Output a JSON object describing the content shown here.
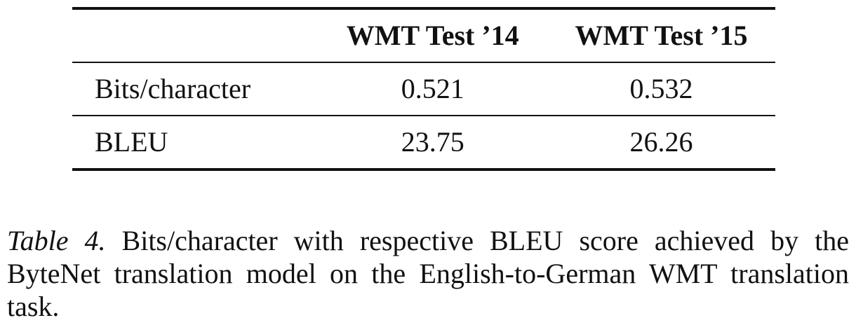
{
  "table": {
    "columns": [
      "",
      "WMT Test ’14",
      "WMT Test ’15"
    ],
    "rows": [
      {
        "label": "Bits/character",
        "values": [
          "0.521",
          "0.532"
        ]
      },
      {
        "label": "BLEU",
        "values": [
          "23.75",
          "26.26"
        ]
      }
    ]
  },
  "caption": {
    "label": "Table 4.",
    "text": " Bits/character with respective BLEU score achieved by the ByteNet translation model on the English-to-German WMT translation task."
  }
}
